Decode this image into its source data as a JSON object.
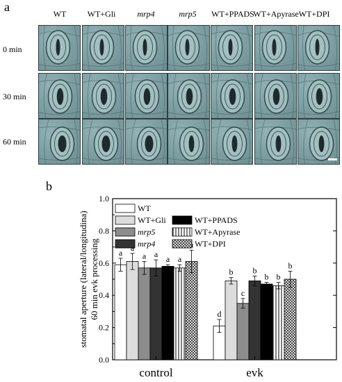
{
  "panel_a": {
    "letter": "a",
    "columns": [
      {
        "label": "WT",
        "italic": false
      },
      {
        "label": "WT+Gli",
        "italic": false
      },
      {
        "label": "mrp4",
        "italic": true
      },
      {
        "label": "mrp5",
        "italic": true
      },
      {
        "label": "WT+PPADS",
        "italic": false
      },
      {
        "label": "WT+Apyrase",
        "italic": false
      },
      {
        "label": "WT+DPI",
        "italic": false
      }
    ],
    "rows": [
      "0 min",
      "30 min",
      "60 min"
    ],
    "colors": {
      "cell_bg": "#7fa1a4",
      "cell_border": "#2c3e40",
      "pore": "#1d2b2e",
      "scale_bar": "#ffffff"
    }
  },
  "panel_b": {
    "letter": "b"
  },
  "chart_data": {
    "type": "bar",
    "categories": [
      "control",
      "evk"
    ],
    "ylabel_line1": "stomatal aperture (lateral/longitudina)",
    "ylabel_line2": "60 min evk processing",
    "ylim": [
      0.0,
      1.0
    ],
    "yticks": [
      "0.0",
      "0.2",
      "0.4",
      "0.6",
      "0.8",
      "1.0"
    ],
    "legend_placement": "top-left",
    "series": [
      {
        "name": "WT",
        "italic": false,
        "fill": "#ffffff",
        "pattern": "none",
        "values": [
          0.59,
          0.21
        ],
        "errors": [
          0.04,
          0.04
        ],
        "letters": [
          "a",
          "d"
        ]
      },
      {
        "name": "WT+Gli",
        "italic": false,
        "fill": "#dcdcdc",
        "pattern": "none",
        "values": [
          0.61,
          0.49
        ],
        "errors": [
          0.05,
          0.02
        ],
        "letters": [
          "a",
          "b"
        ]
      },
      {
        "name": "mrp5",
        "italic": true,
        "fill": "#8c8c8c",
        "pattern": "none",
        "values": [
          0.57,
          0.35
        ],
        "errors": [
          0.04,
          0.03
        ],
        "letters": [
          "a",
          "c"
        ]
      },
      {
        "name": "mrp4",
        "italic": true,
        "fill": "#333333",
        "pattern": "none",
        "values": [
          0.57,
          0.49
        ],
        "errors": [
          0.05,
          0.03
        ],
        "letters": [
          "a",
          "b"
        ]
      },
      {
        "name": "WT+PPADS",
        "italic": false,
        "fill": "#000000",
        "pattern": "none",
        "values": [
          0.58,
          0.47
        ],
        "errors": [
          0.01,
          0.01
        ],
        "letters": [
          "a",
          "b"
        ]
      },
      {
        "name": "WT+Apyrase",
        "italic": false,
        "fill": "#ffffff",
        "pattern": "vertical-lines",
        "values": [
          0.57,
          0.46
        ],
        "errors": [
          0.02,
          0.02
        ],
        "letters": [
          "a",
          "b"
        ]
      },
      {
        "name": "WT+DPI",
        "italic": false,
        "fill": "#ffffff",
        "pattern": "crosshatch",
        "values": [
          0.61,
          0.5
        ],
        "errors": [
          0.07,
          0.05
        ],
        "letters": [
          "a",
          "b"
        ]
      }
    ]
  }
}
